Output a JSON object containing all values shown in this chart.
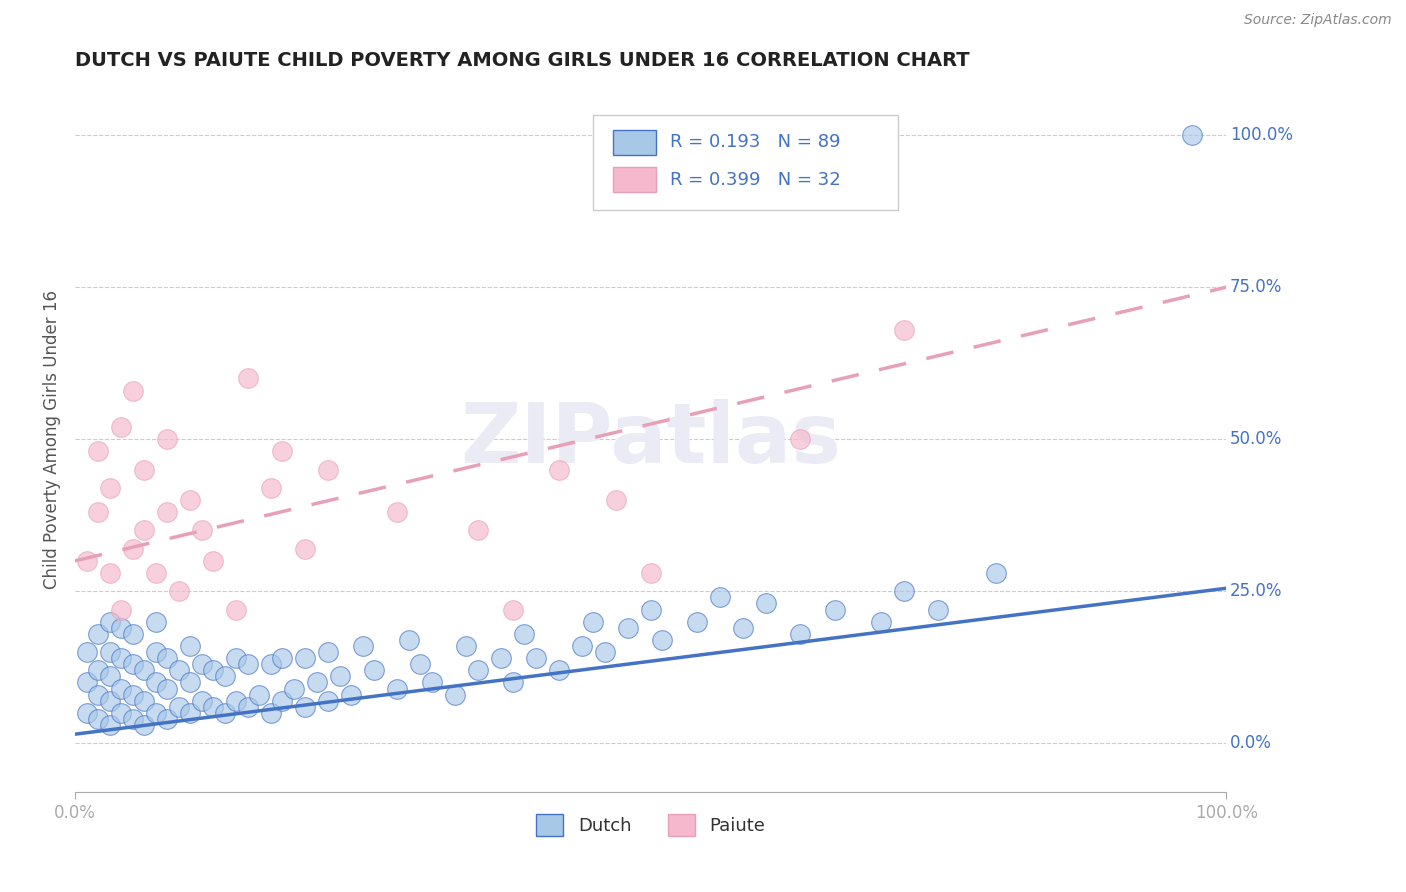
{
  "title": "DUTCH VS PAIUTE CHILD POVERTY AMONG GIRLS UNDER 16 CORRELATION CHART",
  "source": "Source: ZipAtlas.com",
  "ylabel": "Child Poverty Among Girls Under 16",
  "watermark": "ZIPatlas",
  "legend_dutch_R": "0.193",
  "legend_dutch_N": "89",
  "legend_paiute_R": "0.399",
  "legend_paiute_N": "32",
  "dutch_color": "#a8c8e8",
  "paiute_color": "#f5b8cc",
  "dutch_line_color": "#4472c4",
  "paiute_line_color": "#e8a0b8",
  "background_color": "#ffffff",
  "grid_color": "#cccccc",
  "title_color": "#222222",
  "right_label_color": "#4472c4",
  "xlim": [
    0,
    1
  ],
  "ylim": [
    -0.08,
    1.08
  ],
  "dutch_line_start_y": 0.015,
  "dutch_line_end_y": 0.255,
  "paiute_line_start_y": 0.3,
  "paiute_line_end_y": 0.75,
  "ytick_labels": [
    "0.0%",
    "25.0%",
    "50.0%",
    "75.0%",
    "100.0%"
  ],
  "ytick_values": [
    0.0,
    0.25,
    0.5,
    0.75,
    1.0
  ],
  "xtick_labels": [
    "0.0%",
    "100.0%"
  ],
  "xtick_values": [
    0.0,
    1.0
  ],
  "dutch_x": [
    0.01,
    0.01,
    0.01,
    0.02,
    0.02,
    0.02,
    0.02,
    0.03,
    0.03,
    0.03,
    0.03,
    0.03,
    0.04,
    0.04,
    0.04,
    0.04,
    0.05,
    0.05,
    0.05,
    0.05,
    0.06,
    0.06,
    0.06,
    0.07,
    0.07,
    0.07,
    0.07,
    0.08,
    0.08,
    0.08,
    0.09,
    0.09,
    0.1,
    0.1,
    0.1,
    0.11,
    0.11,
    0.12,
    0.12,
    0.13,
    0.13,
    0.14,
    0.14,
    0.15,
    0.15,
    0.16,
    0.17,
    0.17,
    0.18,
    0.18,
    0.19,
    0.2,
    0.2,
    0.21,
    0.22,
    0.22,
    0.23,
    0.24,
    0.25,
    0.26,
    0.28,
    0.29,
    0.3,
    0.31,
    0.33,
    0.34,
    0.35,
    0.37,
    0.38,
    0.39,
    0.4,
    0.42,
    0.44,
    0.45,
    0.46,
    0.48,
    0.5,
    0.51,
    0.54,
    0.56,
    0.58,
    0.6,
    0.63,
    0.66,
    0.7,
    0.72,
    0.75,
    0.8,
    0.97
  ],
  "dutch_y": [
    0.05,
    0.1,
    0.15,
    0.04,
    0.08,
    0.12,
    0.18,
    0.03,
    0.07,
    0.11,
    0.15,
    0.2,
    0.05,
    0.09,
    0.14,
    0.19,
    0.04,
    0.08,
    0.13,
    0.18,
    0.03,
    0.07,
    0.12,
    0.05,
    0.1,
    0.15,
    0.2,
    0.04,
    0.09,
    0.14,
    0.06,
    0.12,
    0.05,
    0.1,
    0.16,
    0.07,
    0.13,
    0.06,
    0.12,
    0.05,
    0.11,
    0.07,
    0.14,
    0.06,
    0.13,
    0.08,
    0.05,
    0.13,
    0.07,
    0.14,
    0.09,
    0.06,
    0.14,
    0.1,
    0.07,
    0.15,
    0.11,
    0.08,
    0.16,
    0.12,
    0.09,
    0.17,
    0.13,
    0.1,
    0.08,
    0.16,
    0.12,
    0.14,
    0.1,
    0.18,
    0.14,
    0.12,
    0.16,
    0.2,
    0.15,
    0.19,
    0.22,
    0.17,
    0.2,
    0.24,
    0.19,
    0.23,
    0.18,
    0.22,
    0.2,
    0.25,
    0.22,
    0.28,
    1.0
  ],
  "paiute_x": [
    0.01,
    0.02,
    0.02,
    0.03,
    0.03,
    0.04,
    0.04,
    0.05,
    0.05,
    0.06,
    0.06,
    0.07,
    0.08,
    0.08,
    0.09,
    0.1,
    0.11,
    0.12,
    0.14,
    0.15,
    0.17,
    0.18,
    0.2,
    0.22,
    0.28,
    0.35,
    0.38,
    0.42,
    0.47,
    0.5,
    0.63,
    0.72
  ],
  "paiute_y": [
    0.3,
    0.38,
    0.48,
    0.28,
    0.42,
    0.22,
    0.52,
    0.32,
    0.58,
    0.35,
    0.45,
    0.28,
    0.38,
    0.5,
    0.25,
    0.4,
    0.35,
    0.3,
    0.22,
    0.6,
    0.42,
    0.48,
    0.32,
    0.45,
    0.38,
    0.35,
    0.22,
    0.45,
    0.4,
    0.28,
    0.5,
    0.68
  ]
}
